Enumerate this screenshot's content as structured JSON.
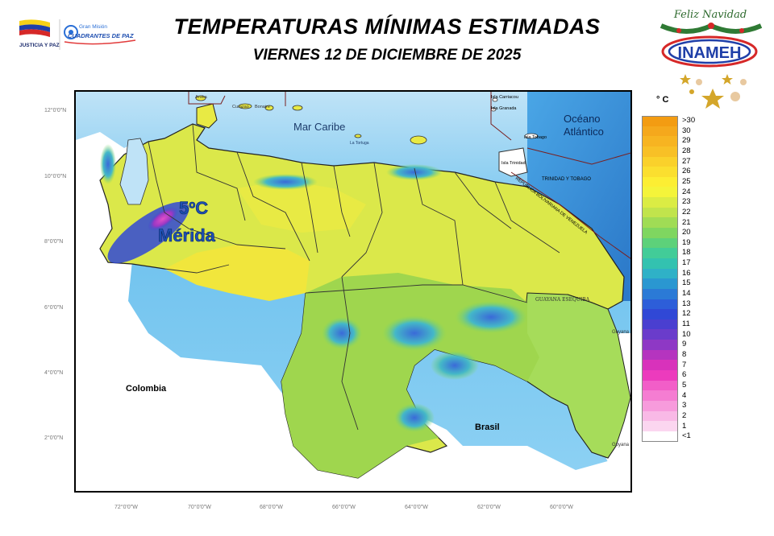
{
  "header": {
    "title": "TEMPERATURAS MÍNIMAS ESTIMADAS",
    "subtitle": "VIERNES 12 DE DICIEMBRE DE 2025"
  },
  "logos": {
    "left_ministry": "JUSTICIA Y PAZ",
    "left_mission_line1": "Gran Misión",
    "left_mission_line2": "CUADRANTES DE PAZ",
    "right_greeting": "Feliz Navidad",
    "right_agency": "INAMEH"
  },
  "map": {
    "labels": {
      "sea": "Mar Caribe",
      "ocean_line1": "Océano",
      "ocean_line2": "Atlántico",
      "colombia": "Colombia",
      "brasil": "Brasil",
      "guayana_esequiba": "GUAYANA ESEQUIBA",
      "trinidad_tobago": "TRINIDAD Y TOBAGO",
      "venezuela_border": "REPÚBLICA BOLIVARIANA DE VENEZUELA",
      "guyana_1": "Guyana",
      "guyana_2": "Guyana",
      "aruba": "Aruba",
      "curazao": "Curazao",
      "bonaire": "Bonaire",
      "la_tortuga": "La Tortuga",
      "isla_carriacou": "Isla Carriacou",
      "isla_granada": "Isla Granada",
      "isla_tobago": "Isla Tobago",
      "isla_trinidad": "Isla Trinidad",
      "annotation_temp": "5ºC",
      "annotation_place": "Mérida"
    },
    "lat_ticks": [
      "12°0'0\"N",
      "10°0'0\"N",
      "8°0'0\"N",
      "6°0'0\"N",
      "4°0'0\"N",
      "2°0'0\"N"
    ],
    "lon_ticks": [
      "72°0'0\"W",
      "70°0'0\"W",
      "68°0'0\"W",
      "66°0'0\"W",
      "64°0'0\"W",
      "62°0'0\"W",
      "60°0'0\"W"
    ]
  },
  "legend": {
    "unit": "° C",
    "entries": [
      {
        "label": ">30",
        "color": "#f39c12"
      },
      {
        "label": "30",
        "color": "#f5a81c"
      },
      {
        "label": "29",
        "color": "#f7b421"
      },
      {
        "label": "28",
        "color": "#f8c026"
      },
      {
        "label": "27",
        "color": "#fad12b"
      },
      {
        "label": "26",
        "color": "#fbdf2f"
      },
      {
        "label": "25",
        "color": "#fcee33"
      },
      {
        "label": "24",
        "color": "#f4f43a"
      },
      {
        "label": "23",
        "color": "#dbec44"
      },
      {
        "label": "22",
        "color": "#c1e44c"
      },
      {
        "label": "21",
        "color": "#a0dc55"
      },
      {
        "label": "20",
        "color": "#7fd660"
      },
      {
        "label": "19",
        "color": "#5dd17a"
      },
      {
        "label": "18",
        "color": "#42cc98"
      },
      {
        "label": "17",
        "color": "#33c2b0"
      },
      {
        "label": "16",
        "color": "#2fb1c7"
      },
      {
        "label": "15",
        "color": "#2a97d1"
      },
      {
        "label": "14",
        "color": "#2b7ad6"
      },
      {
        "label": "13",
        "color": "#2d5ed9"
      },
      {
        "label": "12",
        "color": "#3048d6"
      },
      {
        "label": "11",
        "color": "#4a3fd0"
      },
      {
        "label": "10",
        "color": "#6a3ccb"
      },
      {
        "label": "9",
        "color": "#8e38c5"
      },
      {
        "label": "8",
        "color": "#b534bf"
      },
      {
        "label": "7",
        "color": "#d832bb"
      },
      {
        "label": "6",
        "color": "#ec3bbd"
      },
      {
        "label": "5",
        "color": "#f25ec8"
      },
      {
        "label": "4",
        "color": "#f57dd2"
      },
      {
        "label": "3",
        "color": "#f79bdc"
      },
      {
        "label": "2",
        "color": "#f9b9e6"
      },
      {
        "label": "1",
        "color": "#fbd6f0"
      },
      {
        "label": "<1",
        "color": "#ffffff"
      }
    ]
  }
}
